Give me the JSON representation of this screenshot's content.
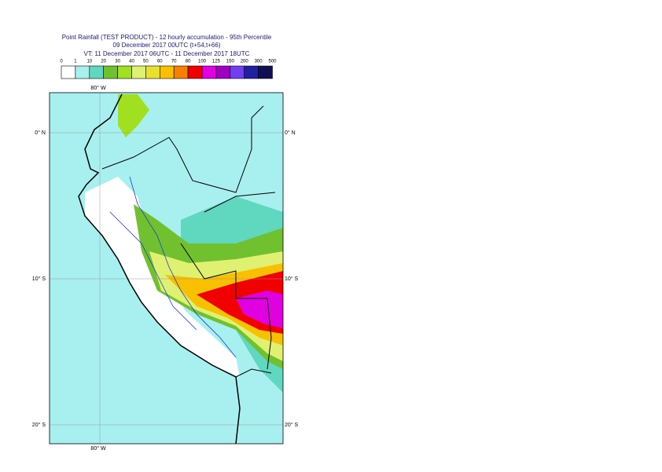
{
  "header": {
    "title": "Point Rainfall (TEST PRODUCT) - 12 hourly accumulation - 95th Percentile",
    "line2": "09 December 2017 00UTC (t+54,t+66)",
    "line3": "VT: 11 December 2017 06UTC - 11 December 2017 18UTC"
  },
  "legend": {
    "labels": [
      "0",
      "1",
      "10",
      "20",
      "30",
      "40",
      "50",
      "60",
      "70",
      "80",
      "100",
      "125",
      "150",
      "200",
      "300",
      "500"
    ],
    "colors": [
      "#ffffff",
      "#a8f0f0",
      "#60d8c0",
      "#70c030",
      "#a0e020",
      "#e0f070",
      "#e8e030",
      "#f8c000",
      "#f88000",
      "#f00000",
      "#e000e0",
      "#a000c0",
      "#7040f0",
      "#2020a0",
      "#101050"
    ]
  },
  "map": {
    "lon_top": "80° W",
    "lon_bottom": "80° W",
    "lat_left": [
      "0° N",
      "10° S",
      "20° S"
    ],
    "lat_right": [
      "0° N",
      "10° S",
      "20° S"
    ]
  }
}
